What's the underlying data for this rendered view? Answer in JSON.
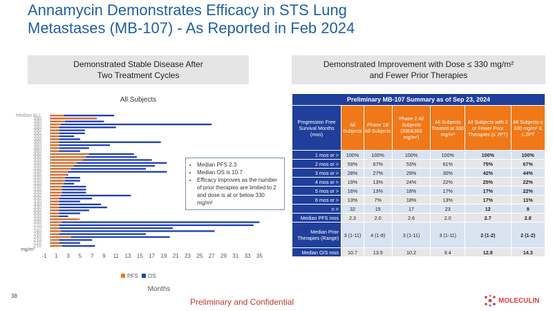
{
  "slide": {
    "title": "Annamycin Demonstrates Efficacy in STS Lung Metastases (MB-107) - As Reported in Feb 2024",
    "left_heading": "Demonstrated Stable Disease After Two Treatment Cycles",
    "right_heading_line1": "Demonstrated Improvement with Dose ≤ 330 mg/m²",
    "right_heading_line2": "and Fewer Prior Therapies",
    "footer": "Preliminary and Confidential",
    "page_number": "38",
    "logo_text": "MOLECULIN"
  },
  "callout": {
    "items": [
      "Median PFS 2.3",
      "Median OS is 10.7",
      "Efficacy improves as the number of prior therapies are limited to 2 and dose is at or below 330 mg/m²"
    ]
  },
  "chart_data": {
    "type": "bar",
    "orientation": "horizontal",
    "title": "All Subjects",
    "xlabel": "Months",
    "ylabel": "mg/m²",
    "xlim": [
      -1,
      36
    ],
    "x_ticks": [
      "-1",
      "1",
      "3",
      "5",
      "7",
      "9",
      "11",
      "13",
      "15",
      "17",
      "19",
      "21",
      "23",
      "25",
      "27",
      "29",
      "31",
      "33",
      "35"
    ],
    "legend_position": "bottom",
    "colors": {
      "PFS": "#f07818",
      "OS": "#1f3fb5"
    },
    "categories": [
      "Median ALL",
      "390",
      "390",
      "390",
      "390",
      "390",
      "390",
      "390",
      "390",
      "360",
      "360",
      "360",
      "360",
      "330",
      "330",
      "330",
      "330",
      "330",
      "330",
      "330",
      "330",
      "330",
      "330",
      "330",
      "330",
      "330",
      "330",
      "330",
      "330",
      "330",
      "330",
      "330",
      "330",
      "330",
      "330",
      "330",
      "330",
      "270",
      "270",
      "240",
      "240",
      "240",
      "210",
      "210",
      "210"
    ],
    "series": [
      {
        "name": "PFS",
        "values": [
          2.3,
          7.8,
          2.5,
          1.8,
          1.5,
          1.5,
          1.5,
          1.5,
          1.5,
          1.5,
          1.5,
          1.5,
          1.5,
          6.5,
          6.0,
          5.5,
          4.5,
          4.0,
          3.5,
          3.0,
          2.8,
          2.5,
          2.5,
          2.3,
          2.0,
          2.0,
          2.0,
          1.8,
          1.5,
          1.5,
          1.5,
          1.5,
          1.5,
          1.5,
          1.5,
          5.0,
          2.0,
          1.5,
          1.5,
          1.8,
          1.5,
          3.5,
          1.5,
          1.5,
          2.0
        ]
      },
      {
        "name": "OS",
        "values": [
          10.7,
          7.8,
          9.0,
          27.0,
          11.0,
          5.8,
          5.8,
          4.0,
          5.0,
          18.5,
          10.0,
          6.5,
          5.0,
          14.0,
          14.5,
          17.0,
          19.5,
          17.5,
          16.0,
          19.5,
          3.0,
          5.0,
          5.0,
          4.0,
          6.0,
          6.0,
          6.0,
          13.5,
          7.0,
          5.0,
          8.5,
          9.5,
          6.5,
          5.0,
          3.0,
          4.5,
          35.0,
          34.0,
          20.5,
          27.5,
          16.0,
          20.0,
          7.0,
          5.0,
          7.5
        ]
      }
    ]
  },
  "summary_table": {
    "caption": "Preliminary MB-107 Summary as of Sep 23, 2024",
    "headers": [
      "Progression Free Survival Months (mos)",
      "All Subjects",
      "Phase 1B All Subjects",
      "Phase 2 All Subjects (330&360 mg/m²)",
      "All Subjects Treated at 330 mg/m²",
      "All Subjects with 2 or Fewer Prior Therapies (≤ 2PT)",
      "All Subjects ≤ 330 mg/m² & ≤ 2PT"
    ],
    "rows": [
      {
        "label": "1 mos or >",
        "cells": [
          "100%",
          "100%",
          "100%",
          "100%",
          "100%",
          "100%"
        ]
      },
      {
        "label": "2 mos or >",
        "cells": [
          "59%",
          "67%",
          "53%",
          "61%",
          "75%",
          "67%"
        ]
      },
      {
        "label": "3 mos or >",
        "cells": [
          "28%",
          "27%",
          "29%",
          "30%",
          "42%",
          "44%"
        ]
      },
      {
        "label": "4 mos or >",
        "cells": [
          "19%",
          "13%",
          "24%",
          "22%",
          "25%",
          "22%"
        ]
      },
      {
        "label": "5 mos or >",
        "cells": [
          "16%",
          "13%",
          "18%",
          "17%",
          "17%",
          "22%"
        ]
      },
      {
        "label": "6 mos or >",
        "cells": [
          "13%",
          "7%",
          "18%",
          "13%",
          "17%",
          "11%"
        ]
      },
      {
        "label": "n =",
        "cells": [
          "32",
          "15",
          "17",
          "23",
          "12",
          "9"
        ]
      },
      {
        "label": "Median PFS mos",
        "cells": [
          "2.3",
          "2.0",
          "2.6",
          "2.0",
          "2.7",
          "2.8"
        ]
      },
      {
        "label": "Median Prior Therapies (Range)",
        "cells": [
          "3 (1-11)",
          "4 (1-8)",
          "3 (1-11)",
          "3 (1-11)",
          "2 (1-2)",
          "2 (1-2)"
        ]
      },
      {
        "label": "Median O/S mos",
        "cells": [
          "10.7",
          "13.5",
          "10.2",
          "9.4",
          "12.8",
          "14.3"
        ]
      }
    ]
  }
}
